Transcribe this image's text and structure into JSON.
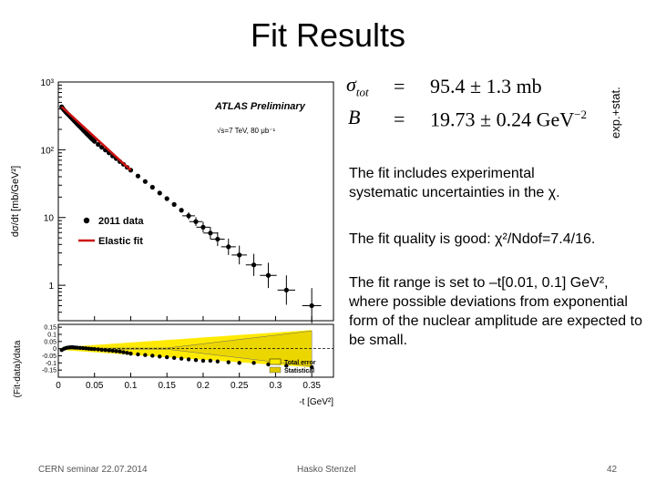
{
  "slide": {
    "title": "Fit Results",
    "formula": {
      "sigma_symbol": "σ",
      "sigma_sub": "tot",
      "b_symbol": "B",
      "eq": "=",
      "sigma_value": "95.4 ± 1.3 mb",
      "b_value": "19.73 ± 0.24 GeV",
      "b_exp": "−2"
    },
    "side_label": "exp.+stat.",
    "bullets": [
      "The fit includes experimental systematic uncertainties in the χ.",
      "The fit quality is good: χ²/Ndof=7.4/16.",
      "The fit range is set to –t[0.01, 0.1] GeV², where possible deviations from exponential form of the nuclear amplitude are expected to be small."
    ],
    "footer": {
      "left": "CERN seminar 22.07.2014",
      "center": "Hasko Stenzel",
      "right": "42"
    }
  },
  "chart_data": [
    {
      "type": "scatter",
      "ylabel": "dσ/dt [mb/GeV²]",
      "log_y": true,
      "ylim": [
        0.3,
        1000
      ],
      "xlim": [
        0,
        0.38
      ],
      "y_tick_labels": [
        "10³",
        "10²",
        "10",
        "1"
      ],
      "annotations": [
        "ATLAS Preliminary",
        "√s=7 TeV, 80 μb⁻¹"
      ],
      "legend": [
        "2011 data",
        "Elastic fit"
      ],
      "legend_position": "middle-left",
      "series": [
        {
          "name": "2011 data",
          "x": [
            0.0047,
            0.006,
            0.0075,
            0.009,
            0.0105,
            0.012,
            0.0135,
            0.015,
            0.0165,
            0.018,
            0.0195,
            0.021,
            0.0225,
            0.024,
            0.0255,
            0.027,
            0.0285,
            0.03,
            0.0315,
            0.033,
            0.0345,
            0.036,
            0.0375,
            0.039,
            0.0405,
            0.042,
            0.0435,
            0.045,
            0.0465,
            0.048,
            0.05,
            0.055,
            0.06,
            0.065,
            0.07,
            0.075,
            0.08,
            0.085,
            0.09,
            0.095,
            0.1,
            0.11,
            0.12,
            0.13,
            0.14,
            0.15,
            0.16,
            0.17,
            0.18,
            0.19,
            0.2,
            0.21,
            0.22,
            0.235,
            0.25,
            0.27,
            0.29,
            0.315,
            0.35
          ],
          "y": [
            430,
            410,
            390,
            375,
            360,
            346,
            334,
            321,
            309,
            297,
            286,
            275,
            264,
            255,
            245,
            236,
            227,
            219,
            211,
            203,
            195,
            188,
            181,
            174,
            168,
            162,
            156,
            150,
            145,
            140,
            133,
            120,
            109,
            99,
            90,
            81,
            74,
            67,
            61,
            55,
            50,
            41,
            34,
            28,
            23,
            19,
            15.6,
            12.8,
            10.6,
            8.7,
            7.2,
            5.9,
            4.8,
            3.7,
            2.8,
            2.0,
            1.4,
            0.85,
            0.5
          ]
        },
        {
          "name": "Elastic fit",
          "x": [
            0.0047,
            0.1
          ],
          "y": [
            430,
            50
          ]
        }
      ]
    },
    {
      "type": "scatter",
      "ylabel": "(Fit-data)/data",
      "xlabel": "-t [GeV²]",
      "xlim": [
        0,
        0.38
      ],
      "ylim": [
        -0.2,
        0.17
      ],
      "x_tick_labels": [
        "0",
        "0.05",
        "0.1",
        "0.15",
        "0.2",
        "0.25",
        "0.3",
        "0.35"
      ],
      "y_tick_labels": [
        "0.15",
        "0.1",
        "0.05",
        "0",
        "-0.05",
        "-0.1",
        "-0.15"
      ],
      "legend": [
        "Total error",
        "Statistical"
      ],
      "legend_position": "bottom-right",
      "series": [
        {
          "name": "residuals",
          "x": [
            0.0047,
            0.008,
            0.011,
            0.014,
            0.017,
            0.02,
            0.023,
            0.026,
            0.03,
            0.034,
            0.038,
            0.042,
            0.046,
            0.05,
            0.055,
            0.06,
            0.065,
            0.07,
            0.075,
            0.08,
            0.085,
            0.09,
            0.095,
            0.1,
            0.11,
            0.12,
            0.13,
            0.14,
            0.15,
            0.16,
            0.17,
            0.18,
            0.19,
            0.2,
            0.21,
            0.22,
            0.235,
            0.25,
            0.27,
            0.29,
            0.315,
            0.35
          ],
          "y": [
            -0.01,
            0.0,
            0.005,
            0.008,
            0.01,
            0.01,
            0.008,
            0.007,
            0.005,
            0.004,
            0.002,
            0.0,
            -0.002,
            -0.003,
            -0.005,
            -0.008,
            -0.01,
            -0.012,
            -0.015,
            -0.018,
            -0.02,
            -0.025,
            -0.03,
            -0.035,
            -0.04,
            -0.045,
            -0.05,
            -0.055,
            -0.06,
            -0.065,
            -0.07,
            -0.075,
            -0.08,
            -0.085,
            -0.085,
            -0.09,
            -0.095,
            -0.1,
            -0.1,
            -0.11,
            -0.12,
            -0.13
          ]
        }
      ]
    }
  ]
}
